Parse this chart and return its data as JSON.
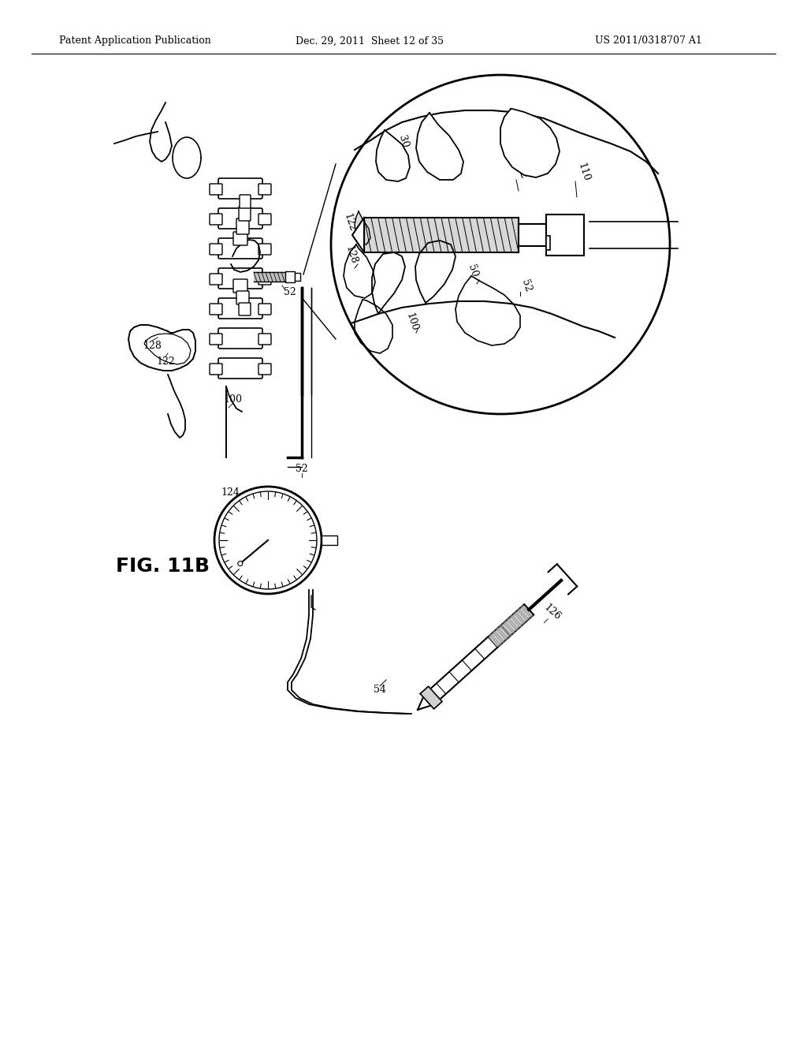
{
  "header_left": "Patent Application Publication",
  "header_mid": "Dec. 29, 2011  Sheet 12 of 35",
  "header_right": "US 2011/0318707 A1",
  "figure_label": "FIG. 11B",
  "background_color": "#ffffff",
  "line_color": "#000000",
  "lw_main": 1.5,
  "lw_thin": 1.0,
  "lw_thick": 2.0
}
